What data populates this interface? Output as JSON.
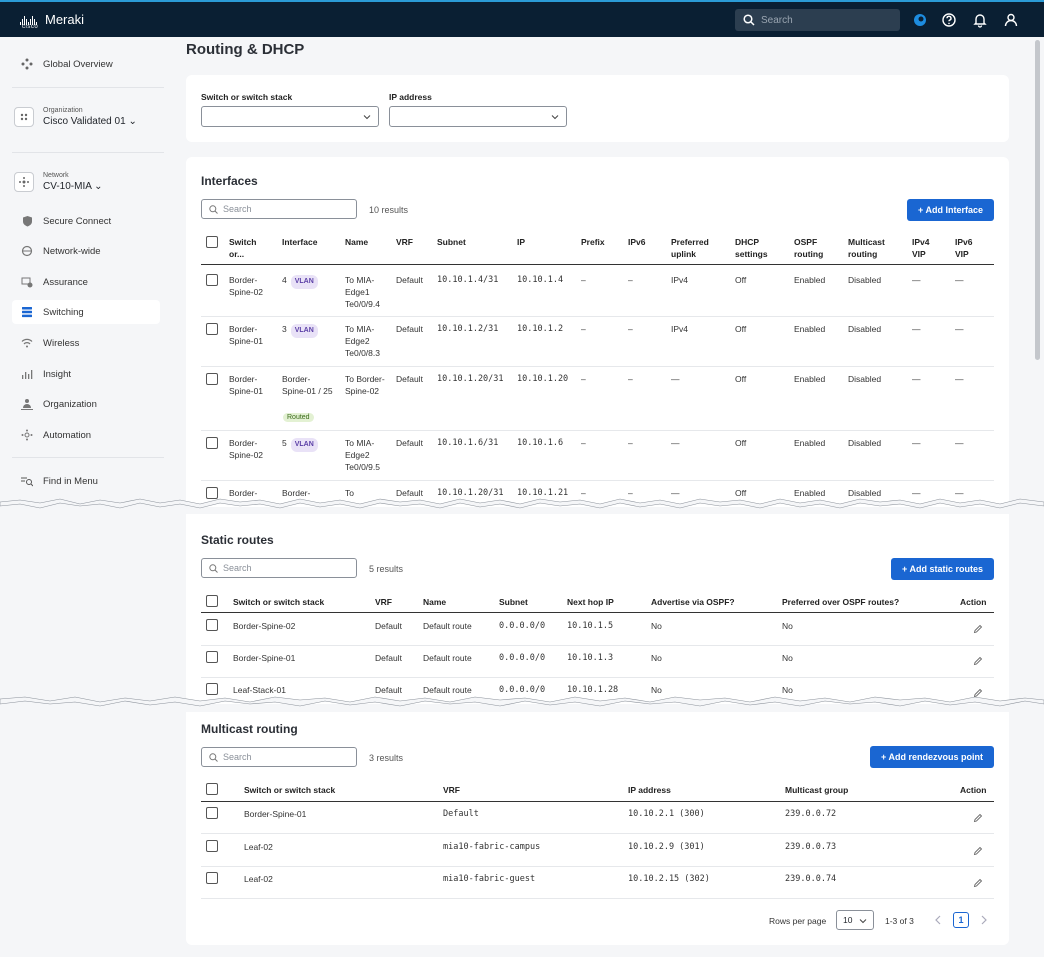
{
  "header": {
    "brand": "Meraki",
    "cisco_word": "cisco",
    "search_placeholder": "Search"
  },
  "sidebar": {
    "global_overview": "Global Overview",
    "org_label": "Organization",
    "org_name": "Cisco Validated 01",
    "net_label": "Network",
    "net_name": "CV-10-MIA",
    "items": [
      "Secure Connect",
      "Network-wide",
      "Assurance",
      "Switching",
      "Wireless",
      "Insight",
      "Organization",
      "Automation"
    ],
    "find": "Find in Menu"
  },
  "page": {
    "title": "Routing & DHCP"
  },
  "filters": {
    "switch_label": "Switch or switch stack",
    "ip_label": "IP address"
  },
  "interfaces": {
    "title": "Interfaces",
    "search_placeholder": "Search",
    "count": "10 results",
    "add_button": "+ Add Interface",
    "headers": [
      "Switch or...",
      "Interface",
      "Name",
      "VRF",
      "Subnet",
      "IP",
      "Prefix",
      "IPv6",
      "Preferred uplink",
      "DHCP settings",
      "OSPF routing",
      "Multicast routing",
      "IPv4 VIP",
      "IPv6 VIP"
    ],
    "rows": [
      {
        "switch": "Border-Spine-02",
        "iface": "4",
        "badge": "VLAN",
        "routed": "",
        "name": "To MIA-Edge1 Te0/0/9.4",
        "vrf": "Default",
        "subnet": "10.10.1.4/31",
        "ip": "10.10.1.4",
        "prefix": "–",
        "ipv6": "–",
        "uplink": "IPv4",
        "dhcp": "Off",
        "ospf": "Enabled",
        "mcast": "Disabled",
        "v4vip": "—",
        "v6vip": "—"
      },
      {
        "switch": "Border-Spine-01",
        "iface": "3",
        "badge": "VLAN",
        "routed": "",
        "name": "To MIA-Edge2 Te0/0/8.3",
        "vrf": "Default",
        "subnet": "10.10.1.2/31",
        "ip": "10.10.1.2",
        "prefix": "–",
        "ipv6": "–",
        "uplink": "IPv4",
        "dhcp": "Off",
        "ospf": "Enabled",
        "mcast": "Disabled",
        "v4vip": "—",
        "v6vip": "—"
      },
      {
        "switch": "Border-Spine-01",
        "iface": "Border-Spine-01 / 25",
        "badge": "",
        "routed": "Routed",
        "name": "To Border-Spine-02",
        "vrf": "Default",
        "subnet": "10.10.1.20/31",
        "ip": "10.10.1.20",
        "prefix": "–",
        "ipv6": "–",
        "uplink": "—",
        "dhcp": "Off",
        "ospf": "Enabled",
        "mcast": "Disabled",
        "v4vip": "—",
        "v6vip": "—"
      },
      {
        "switch": "Border-Spine-02",
        "iface": "5",
        "badge": "VLAN",
        "routed": "",
        "name": "To MIA-Edge2 Te0/0/9.5",
        "vrf": "Default",
        "subnet": "10.10.1.6/31",
        "ip": "10.10.1.6",
        "prefix": "–",
        "ipv6": "–",
        "uplink": "—",
        "dhcp": "Off",
        "ospf": "Enabled",
        "mcast": "Disabled",
        "v4vip": "—",
        "v6vip": "—"
      },
      {
        "switch": "Border-",
        "iface": "Border-",
        "badge": "",
        "routed": "",
        "name": "To",
        "vrf": "Default",
        "subnet": "10.10.1.20/31",
        "ip": "10.10.1.21",
        "prefix": "–",
        "ipv6": "–",
        "uplink": "—",
        "dhcp": "Off",
        "ospf": "Enabled",
        "mcast": "Disabled",
        "v4vip": "—",
        "v6vip": "—"
      }
    ]
  },
  "static_routes": {
    "title": "Static routes",
    "search_placeholder": "Search",
    "count": "5 results",
    "add_button": "+ Add static routes",
    "headers": [
      "Switch or switch stack",
      "VRF",
      "Name",
      "Subnet",
      "Next hop IP",
      "Advertise via OSPF?",
      "Preferred over OSPF routes?",
      "Action"
    ],
    "rows": [
      {
        "switch": "Border-Spine-02",
        "vrf": "Default",
        "name": "Default route",
        "subnet": "0.0.0.0/0",
        "nexthop": "10.10.1.5",
        "adv": "No",
        "pref": "No"
      },
      {
        "switch": "Border-Spine-01",
        "vrf": "Default",
        "name": "Default route",
        "subnet": "0.0.0.0/0",
        "nexthop": "10.10.1.3",
        "adv": "No",
        "pref": "No"
      },
      {
        "switch": "Leaf-Stack-01",
        "vrf": "Default",
        "name": "Default route",
        "subnet": "0.0.0.0/0",
        "nexthop": "10.10.1.28",
        "adv": "No",
        "pref": "No"
      }
    ]
  },
  "multicast": {
    "title": "Multicast routing",
    "search_placeholder": "Search",
    "count": "3 results",
    "add_button": "+ Add rendezvous point",
    "headers": [
      "Switch or switch stack",
      "VRF",
      "IP address",
      "Multicast group",
      "Action"
    ],
    "rows": [
      {
        "switch": "Border-Spine-01",
        "vrf": "Default",
        "ip": "10.10.2.1 (300)",
        "group": "239.0.0.72"
      },
      {
        "switch": "Leaf-02",
        "vrf": "mia10-fabric-campus",
        "ip": "10.10.2.9 (301)",
        "group": "239.0.0.73"
      },
      {
        "switch": "Leaf-02",
        "vrf": "mia10-fabric-guest",
        "ip": "10.10.2.15 (302)",
        "group": "239.0.0.74"
      }
    ],
    "rows_per_page_label": "Rows per page",
    "rows_per_page": "10",
    "range": "1-3 of 3",
    "page": "1"
  }
}
